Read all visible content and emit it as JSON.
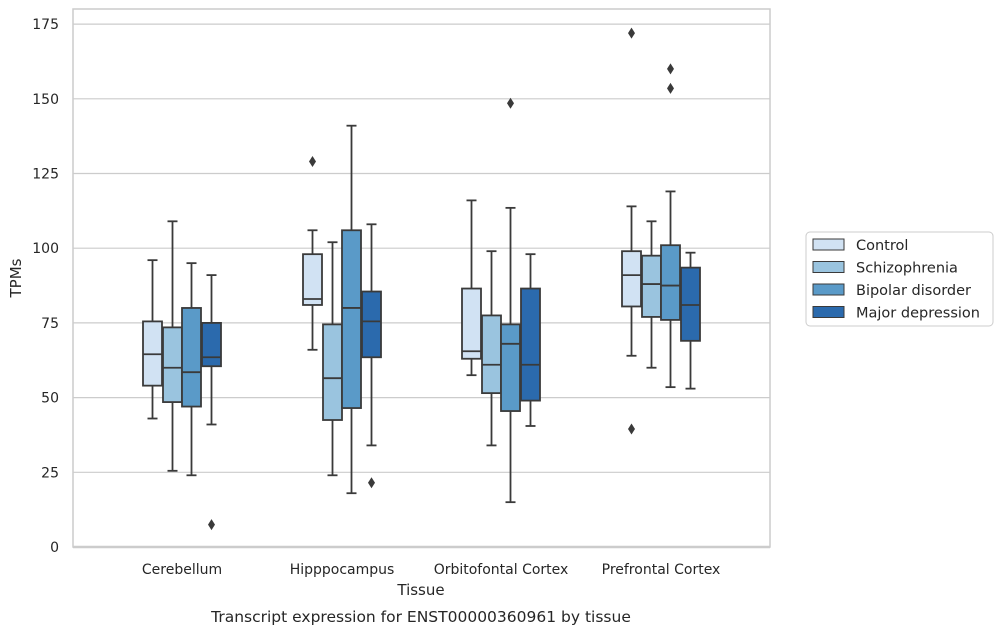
{
  "chart_data": {
    "type": "box",
    "title": "",
    "caption": "Transcript expression for ENST00000360961 by tissue",
    "xlabel": "Tissue",
    "ylabel": "TPMs",
    "ylim": [
      0,
      180
    ],
    "yticks": [
      0,
      25,
      50,
      75,
      100,
      125,
      150,
      175
    ],
    "grid": "horizontal",
    "legend_position": "outside-right",
    "categories": [
      "Cerebellum",
      "Hipppocampus",
      "Orbitofontal Cortex",
      "Prefrontal Cortex"
    ],
    "series": [
      {
        "name": "Control",
        "color": "#d1e2f3",
        "boxes": [
          {
            "whisker_low": 43,
            "q1": 54,
            "median": 64.5,
            "q3": 75.5,
            "whisker_high": 96,
            "outliers": []
          },
          {
            "whisker_low": 66,
            "q1": 81,
            "median": 83,
            "q3": 98,
            "whisker_high": 106,
            "outliers": [
              129
            ]
          },
          {
            "whisker_low": 57.5,
            "q1": 63,
            "median": 65.5,
            "q3": 86.5,
            "whisker_high": 116,
            "outliers": []
          },
          {
            "whisker_low": 64,
            "q1": 80.5,
            "median": 91,
            "q3": 99,
            "whisker_high": 114,
            "outliers": [
              39.5,
              172
            ]
          }
        ]
      },
      {
        "name": "Schizophrenia",
        "color": "#9ac4df",
        "boxes": [
          {
            "whisker_low": 25.5,
            "q1": 48.5,
            "median": 60,
            "q3": 73.5,
            "whisker_high": 109,
            "outliers": []
          },
          {
            "whisker_low": 24,
            "q1": 42.5,
            "median": 56.5,
            "q3": 74.5,
            "whisker_high": 102,
            "outliers": []
          },
          {
            "whisker_low": 34,
            "q1": 51.5,
            "median": 61,
            "q3": 77.5,
            "whisker_high": 99,
            "outliers": []
          },
          {
            "whisker_low": 60,
            "q1": 77,
            "median": 88,
            "q3": 97.5,
            "whisker_high": 109,
            "outliers": []
          }
        ]
      },
      {
        "name": "Bipolar disorder",
        "color": "#5a9ac8",
        "boxes": [
          {
            "whisker_low": 24,
            "q1": 47,
            "median": 58.5,
            "q3": 80,
            "whisker_high": 95,
            "outliers": []
          },
          {
            "whisker_low": 18,
            "q1": 46.5,
            "median": 80,
            "q3": 106,
            "whisker_high": 141,
            "outliers": []
          },
          {
            "whisker_low": 15,
            "q1": 45.5,
            "median": 68,
            "q3": 74.5,
            "whisker_high": 113.5,
            "outliers": [
              148.5
            ]
          },
          {
            "whisker_low": 53.5,
            "q1": 76,
            "median": 87.5,
            "q3": 101,
            "whisker_high": 119,
            "outliers": [
              153.5,
              160
            ]
          }
        ]
      },
      {
        "name": "Major depression",
        "color": "#2b6aad",
        "boxes": [
          {
            "whisker_low": 41,
            "q1": 60.5,
            "median": 63.5,
            "q3": 75,
            "whisker_high": 91,
            "outliers": [
              7.5
            ]
          },
          {
            "whisker_low": 34,
            "q1": 63.5,
            "median": 75.5,
            "q3": 85.5,
            "whisker_high": 108,
            "outliers": [
              21.5
            ]
          },
          {
            "whisker_low": 40.5,
            "q1": 49,
            "median": 61,
            "q3": 86.5,
            "whisker_high": 98,
            "outliers": []
          },
          {
            "whisker_low": 53,
            "q1": 69,
            "median": 81,
            "q3": 93.5,
            "whisker_high": 98.5,
            "outliers": []
          }
        ]
      }
    ]
  }
}
